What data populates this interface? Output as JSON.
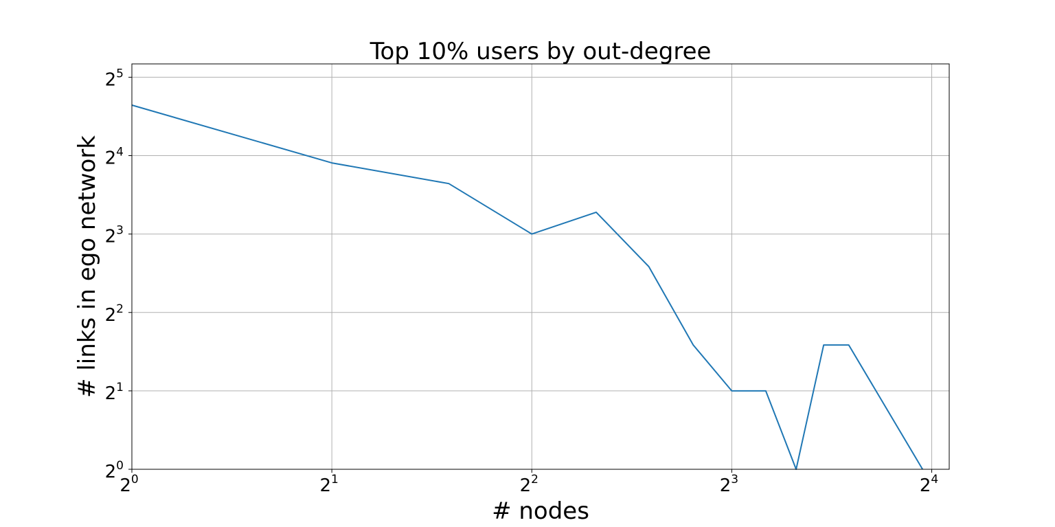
{
  "chart_data": {
    "type": "line",
    "title": "Top 10% users by out-degree",
    "xlabel": "# nodes",
    "ylabel": "# links in ego network",
    "xscale": "log2",
    "yscale": "log2",
    "xlim": [
      1,
      17
    ],
    "ylim": [
      1,
      36
    ],
    "grid": true,
    "x_ticks": [
      {
        "base": "2",
        "exp": "0",
        "value": 1
      },
      {
        "base": "2",
        "exp": "1",
        "value": 2
      },
      {
        "base": "2",
        "exp": "2",
        "value": 4
      },
      {
        "base": "2",
        "exp": "3",
        "value": 8
      },
      {
        "base": "2",
        "exp": "4",
        "value": 16
      }
    ],
    "y_ticks": [
      {
        "base": "2",
        "exp": "0",
        "value": 1
      },
      {
        "base": "2",
        "exp": "1",
        "value": 2
      },
      {
        "base": "2",
        "exp": "2",
        "value": 4
      },
      {
        "base": "2",
        "exp": "3",
        "value": 8
      },
      {
        "base": "2",
        "exp": "4",
        "value": 16
      },
      {
        "base": "2",
        "exp": "5",
        "value": 32
      }
    ],
    "series": [
      {
        "color": "#1f77b4",
        "x": [
          1,
          2,
          3,
          4,
          5,
          6,
          7,
          8,
          9,
          10,
          11,
          12,
          15.5
        ],
        "y": [
          25,
          15,
          12.5,
          8,
          9.7,
          6,
          3,
          2,
          2,
          1,
          3,
          3,
          1
        ]
      }
    ]
  }
}
